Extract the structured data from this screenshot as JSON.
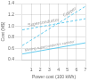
{
  "chart_data": {
    "type": "line",
    "xlabel": "Power cost (100 kWh)",
    "ylabel": "Cost (M$)",
    "x": [
      0,
      7
    ],
    "series": [
      {
        "name": "Copper",
        "color": "#66ccee",
        "line_style": "dashed",
        "values": [
          0.65,
          1.35
        ]
      },
      {
        "name": "Superconductor",
        "color": "#66ccee",
        "line_style": "dashed",
        "values": [
          0.93,
          1.13
        ]
      },
      {
        "name": "Moving superconductor canister",
        "color": "#66ccee",
        "line_style": "solid",
        "values": [
          0.5,
          0.7
        ]
      }
    ],
    "xlim": [
      0,
      7
    ],
    "ylim": [
      0.4,
      1.4
    ],
    "xticks": [
      1,
      2,
      3,
      4,
      5,
      6,
      7
    ],
    "yticks": [
      0.4,
      0.6,
      0.8,
      {
        "value": 1.0,
        "label": "1.0"
      },
      1.2,
      1.4
    ],
    "grid": true
  }
}
